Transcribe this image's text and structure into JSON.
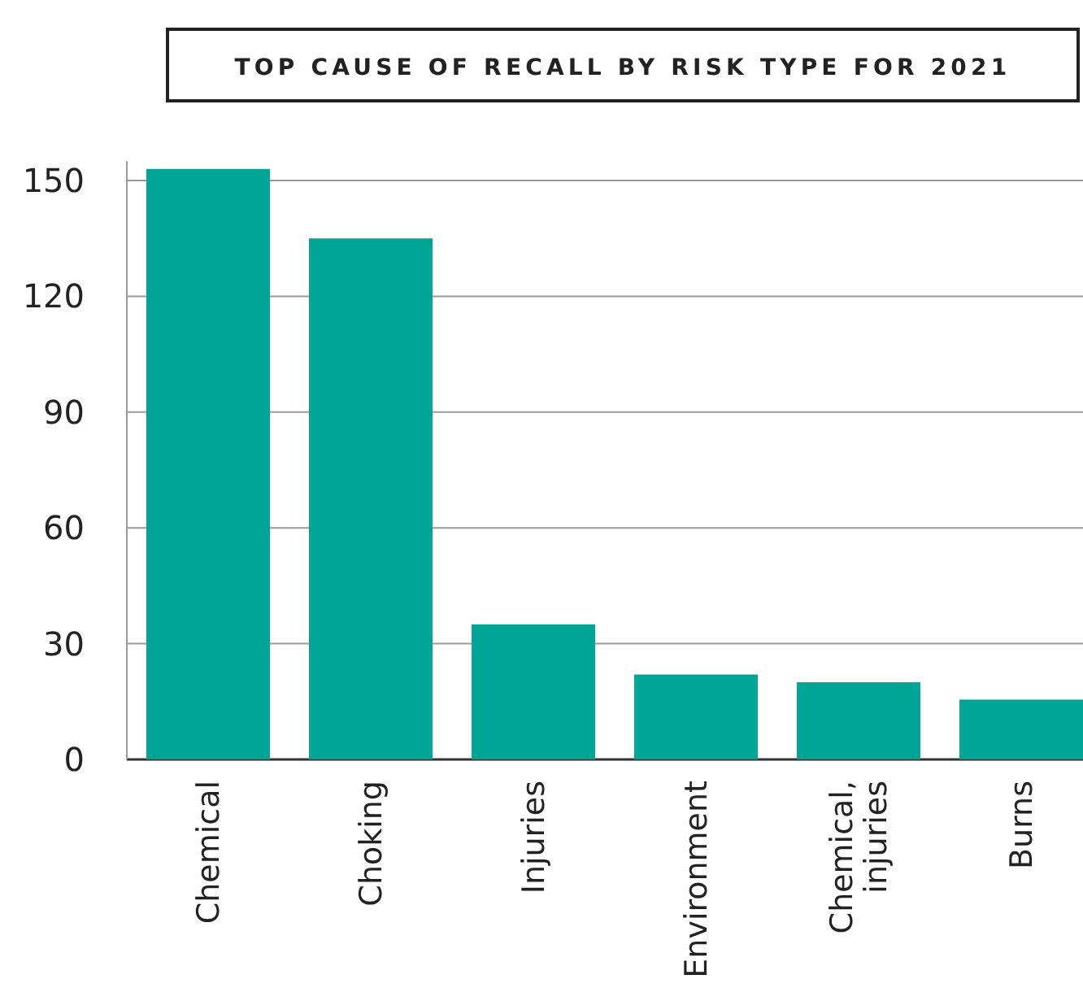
{
  "chart_data": {
    "type": "bar",
    "title": "TOP CAUSE OF RECALL BY RISK TYPE FOR 2021",
    "categories": [
      "Chemical",
      "Choking",
      "Injuries",
      "Environment",
      "Chemical, injuries",
      "Burns"
    ],
    "values": [
      153,
      135,
      35,
      22,
      20,
      15.5
    ],
    "color": "#00a596",
    "ylim": [
      0,
      155
    ],
    "yticks": [
      0,
      30,
      60,
      90,
      120,
      150
    ],
    "grid": "y"
  }
}
